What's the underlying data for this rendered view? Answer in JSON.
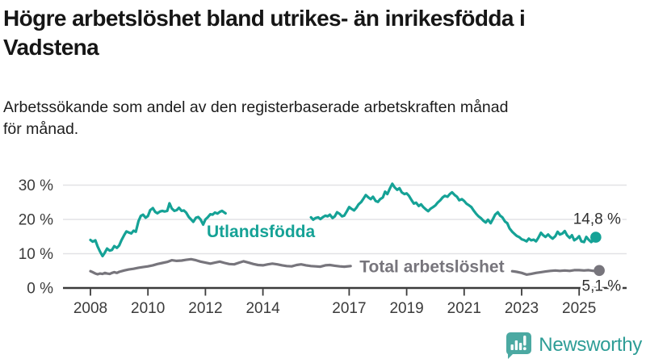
{
  "title": {
    "line1": "Högre arbetslöshet bland utrikes- än inrikesfödda i",
    "line2": "Vadstena"
  },
  "subtitle": {
    "line1": "Arbetssökande som andel av den registerbaserade arbetskraften månad",
    "line2": "för månad."
  },
  "branding": {
    "name": "Newsworthy",
    "icon": "bar-chart-speech-bubble",
    "icon_color": "#4BA9A2",
    "text_color": "#2E9D96"
  },
  "colors": {
    "series_utlandsfodda": "#15A296",
    "series_total": "#77757C",
    "grid": "#E2E2E6",
    "axis": "#3B3B3B",
    "tick_text": "#3B3B3B",
    "value_text": "#2F2F2F"
  },
  "chart_data": {
    "type": "line",
    "unit": "%",
    "x_ticks": [
      2008,
      2010,
      2012,
      2014,
      2017,
      2019,
      2021,
      2023,
      2025
    ],
    "y_ticks": [
      0,
      10,
      20,
      30
    ],
    "y_tick_labels": [
      "0 %",
      "10 %",
      "20 %",
      "30 %"
    ],
    "ylim": [
      0,
      34
    ],
    "xlim": [
      2007.3,
      2026.6
    ],
    "grid": "horizontal-only",
    "legend_position": "inline-labels",
    "series": [
      {
        "name": "Utlandsfödda",
        "color": "#15A296",
        "end_label": "14,8 %",
        "end_value": 14.8,
        "label": {
          "text": "Utlandsfödda",
          "x": 2013.93,
          "y": 16.6
        },
        "segments": [
          [
            [
              2008.0,
              14.0
            ],
            [
              2008.08,
              13.5
            ],
            [
              2008.17,
              13.9
            ],
            [
              2008.25,
              12.1
            ],
            [
              2008.33,
              10.7
            ],
            [
              2008.42,
              9.3
            ],
            [
              2008.5,
              10.3
            ],
            [
              2008.58,
              11.5
            ],
            [
              2008.67,
              10.9
            ],
            [
              2008.75,
              11.1
            ],
            [
              2008.83,
              12.2
            ],
            [
              2008.92,
              11.7
            ],
            [
              2009.0,
              12.4
            ],
            [
              2009.08,
              13.9
            ],
            [
              2009.17,
              15.4
            ],
            [
              2009.25,
              16.5
            ],
            [
              2009.33,
              16.2
            ],
            [
              2009.42,
              15.9
            ],
            [
              2009.5,
              16.7
            ],
            [
              2009.58,
              16.4
            ],
            [
              2009.67,
              19.5
            ],
            [
              2009.75,
              21.0
            ],
            [
              2009.83,
              21.4
            ],
            [
              2009.92,
              20.5
            ],
            [
              2010.0,
              21.0
            ],
            [
              2010.08,
              22.7
            ],
            [
              2010.17,
              23.3
            ],
            [
              2010.25,
              22.2
            ],
            [
              2010.33,
              21.8
            ],
            [
              2010.42,
              22.3
            ],
            [
              2010.5,
              22.5
            ],
            [
              2010.58,
              22.3
            ],
            [
              2010.67,
              22.5
            ],
            [
              2010.75,
              24.7
            ],
            [
              2010.83,
              23.2
            ],
            [
              2010.92,
              22.5
            ],
            [
              2011.0,
              22.7
            ],
            [
              2011.08,
              23.4
            ],
            [
              2011.17,
              22.5
            ],
            [
              2011.25,
              22.6
            ],
            [
              2011.33,
              22.0
            ],
            [
              2011.42,
              20.7
            ],
            [
              2011.5,
              20.0
            ],
            [
              2011.58,
              19.3
            ],
            [
              2011.67,
              20.5
            ],
            [
              2011.75,
              20.7
            ],
            [
              2011.83,
              20.0
            ],
            [
              2011.92,
              18.5
            ],
            [
              2012.0,
              20.0
            ],
            [
              2012.08,
              20.6
            ],
            [
              2012.17,
              21.5
            ],
            [
              2012.25,
              21.4
            ],
            [
              2012.33,
              22.0
            ],
            [
              2012.42,
              21.7
            ],
            [
              2012.5,
              22.2
            ],
            [
              2012.58,
              22.5
            ],
            [
              2012.7,
              21.8
            ]
          ],
          [
            [
              2015.67,
              20.6
            ],
            [
              2015.75,
              19.9
            ],
            [
              2015.83,
              20.4
            ],
            [
              2015.92,
              20.6
            ],
            [
              2016.0,
              20.1
            ],
            [
              2016.08,
              20.6
            ],
            [
              2016.17,
              21.1
            ],
            [
              2016.25,
              20.9
            ],
            [
              2016.33,
              21.4
            ],
            [
              2016.42,
              20.4
            ],
            [
              2016.5,
              20.9
            ],
            [
              2016.58,
              22.1
            ],
            [
              2016.67,
              21.6
            ],
            [
              2016.75,
              20.9
            ],
            [
              2016.83,
              21.1
            ],
            [
              2016.92,
              22.4
            ],
            [
              2017.0,
              23.6
            ],
            [
              2017.08,
              23.1
            ],
            [
              2017.17,
              22.6
            ],
            [
              2017.25,
              23.4
            ],
            [
              2017.33,
              24.4
            ],
            [
              2017.42,
              25.1
            ],
            [
              2017.5,
              26.1
            ],
            [
              2017.58,
              27.1
            ],
            [
              2017.67,
              26.4
            ],
            [
              2017.75,
              25.9
            ],
            [
              2017.83,
              26.6
            ],
            [
              2017.92,
              25.4
            ],
            [
              2018.0,
              25.1
            ],
            [
              2018.08,
              25.9
            ],
            [
              2018.17,
              26.4
            ],
            [
              2018.25,
              28.1
            ],
            [
              2018.33,
              27.4
            ],
            [
              2018.42,
              29.1
            ],
            [
              2018.5,
              30.4
            ],
            [
              2018.58,
              29.4
            ],
            [
              2018.67,
              28.6
            ],
            [
              2018.75,
              29.1
            ],
            [
              2018.83,
              27.9
            ],
            [
              2018.92,
              27.4
            ],
            [
              2019.0,
              27.6
            ],
            [
              2019.08,
              26.9
            ],
            [
              2019.17,
              25.6
            ],
            [
              2019.25,
              24.6
            ],
            [
              2019.33,
              24.9
            ],
            [
              2019.42,
              23.9
            ],
            [
              2019.5,
              24.4
            ],
            [
              2019.58,
              23.6
            ],
            [
              2019.67,
              22.9
            ],
            [
              2019.75,
              22.4
            ],
            [
              2019.83,
              23.1
            ],
            [
              2019.92,
              23.6
            ],
            [
              2020.0,
              24.1
            ],
            [
              2020.08,
              24.9
            ],
            [
              2020.17,
              25.6
            ],
            [
              2020.25,
              26.4
            ],
            [
              2020.33,
              26.9
            ],
            [
              2020.42,
              26.6
            ],
            [
              2020.5,
              27.4
            ],
            [
              2020.58,
              27.9
            ],
            [
              2020.67,
              27.1
            ],
            [
              2020.75,
              26.6
            ],
            [
              2020.83,
              25.6
            ],
            [
              2020.92,
              25.9
            ],
            [
              2021.0,
              25.4
            ],
            [
              2021.08,
              24.6
            ],
            [
              2021.17,
              24.1
            ],
            [
              2021.25,
              23.6
            ],
            [
              2021.33,
              22.6
            ],
            [
              2021.42,
              21.6
            ],
            [
              2021.5,
              20.9
            ],
            [
              2021.58,
              20.4
            ],
            [
              2021.67,
              19.6
            ],
            [
              2021.75,
              19.1
            ],
            [
              2021.83,
              19.9
            ],
            [
              2021.92,
              18.9
            ],
            [
              2022.0,
              20.1
            ],
            [
              2022.08,
              21.4
            ],
            [
              2022.17,
              22.1
            ],
            [
              2022.25,
              21.1
            ],
            [
              2022.33,
              20.6
            ],
            [
              2022.42,
              19.4
            ],
            [
              2022.5,
              18.9
            ],
            [
              2022.58,
              17.4
            ],
            [
              2022.67,
              16.4
            ],
            [
              2022.75,
              15.8
            ],
            [
              2022.83,
              15.2
            ],
            [
              2022.92,
              14.8
            ],
            [
              2023.0,
              14.2
            ],
            [
              2023.08,
              14.0
            ],
            [
              2023.17,
              13.6
            ],
            [
              2023.25,
              14.4
            ],
            [
              2023.33,
              13.9
            ],
            [
              2023.42,
              14.1
            ],
            [
              2023.5,
              13.6
            ],
            [
              2023.58,
              14.6
            ],
            [
              2023.67,
              16.1
            ],
            [
              2023.75,
              15.4
            ],
            [
              2023.83,
              14.9
            ],
            [
              2023.92,
              15.6
            ],
            [
              2024.0,
              14.9
            ],
            [
              2024.08,
              14.4
            ],
            [
              2024.17,
              15.1
            ],
            [
              2024.25,
              16.4
            ],
            [
              2024.33,
              15.6
            ],
            [
              2024.42,
              15.9
            ],
            [
              2024.5,
              16.6
            ],
            [
              2024.58,
              15.4
            ],
            [
              2024.67,
              14.6
            ],
            [
              2024.75,
              15.4
            ],
            [
              2024.83,
              13.9
            ],
            [
              2024.92,
              14.4
            ],
            [
              2025.0,
              15.1
            ],
            [
              2025.08,
              13.6
            ],
            [
              2025.17,
              13.4
            ],
            [
              2025.25,
              14.9
            ],
            [
              2025.33,
              14.1
            ],
            [
              2025.42,
              13.4
            ],
            [
              2025.5,
              13.9
            ],
            [
              2025.58,
              14.8
            ]
          ]
        ]
      },
      {
        "name": "Total arbetslöshet",
        "color": "#77757C",
        "end_label": "5,1 %",
        "end_value": 5.1,
        "label": {
          "text": "Total arbetslöshet",
          "x": 2019.88,
          "y": 6.3
        },
        "segments": [
          [
            [
              2008.0,
              4.9
            ],
            [
              2008.08,
              4.6
            ],
            [
              2008.17,
              4.2
            ],
            [
              2008.25,
              4.0
            ],
            [
              2008.33,
              4.2
            ],
            [
              2008.42,
              4.1
            ],
            [
              2008.5,
              4.4
            ],
            [
              2008.58,
              4.2
            ],
            [
              2008.67,
              4.1
            ],
            [
              2008.75,
              4.4
            ],
            [
              2008.83,
              4.6
            ],
            [
              2008.92,
              4.4
            ],
            [
              2009.0,
              4.7
            ],
            [
              2009.17,
              5.1
            ],
            [
              2009.33,
              5.4
            ],
            [
              2009.5,
              5.6
            ],
            [
              2009.67,
              5.9
            ],
            [
              2009.83,
              6.1
            ],
            [
              2010.0,
              6.3
            ],
            [
              2010.17,
              6.6
            ],
            [
              2010.33,
              7.0
            ],
            [
              2010.5,
              7.3
            ],
            [
              2010.67,
              7.6
            ],
            [
              2010.83,
              8.1
            ],
            [
              2011.0,
              7.9
            ],
            [
              2011.17,
              8.0
            ],
            [
              2011.33,
              8.2
            ],
            [
              2011.5,
              8.4
            ],
            [
              2011.67,
              8.1
            ],
            [
              2011.83,
              7.7
            ],
            [
              2012.0,
              7.4
            ],
            [
              2012.17,
              7.1
            ],
            [
              2012.33,
              7.4
            ],
            [
              2012.5,
              7.7
            ],
            [
              2012.67,
              7.3
            ],
            [
              2012.83,
              7.0
            ],
            [
              2013.0,
              6.9
            ],
            [
              2013.17,
              7.4
            ],
            [
              2013.33,
              7.8
            ],
            [
              2013.5,
              7.4
            ],
            [
              2013.67,
              7.0
            ],
            [
              2013.83,
              6.7
            ],
            [
              2014.0,
              6.6
            ],
            [
              2014.17,
              6.9
            ],
            [
              2014.33,
              7.1
            ],
            [
              2014.5,
              6.9
            ],
            [
              2014.67,
              6.6
            ],
            [
              2014.83,
              6.4
            ],
            [
              2015.0,
              6.3
            ],
            [
              2015.17,
              6.7
            ],
            [
              2015.33,
              6.9
            ],
            [
              2015.5,
              6.6
            ],
            [
              2015.67,
              6.4
            ],
            [
              2015.83,
              6.3
            ],
            [
              2016.0,
              6.2
            ],
            [
              2016.17,
              6.6
            ],
            [
              2016.33,
              6.7
            ],
            [
              2016.5,
              6.5
            ],
            [
              2016.67,
              6.3
            ],
            [
              2016.83,
              6.2
            ],
            [
              2017.05,
              6.4
            ]
          ],
          [
            [
              2022.67,
              4.9
            ],
            [
              2022.83,
              4.7
            ],
            [
              2023.0,
              4.4
            ],
            [
              2023.17,
              3.9
            ],
            [
              2023.33,
              4.1
            ],
            [
              2023.5,
              4.4
            ],
            [
              2023.67,
              4.6
            ],
            [
              2023.83,
              4.8
            ],
            [
              2024.0,
              5.0
            ],
            [
              2024.17,
              5.1
            ],
            [
              2024.33,
              5.0
            ],
            [
              2024.5,
              5.1
            ],
            [
              2024.67,
              5.0
            ],
            [
              2024.83,
              5.2
            ],
            [
              2025.0,
              5.2
            ],
            [
              2025.17,
              5.1
            ],
            [
              2025.33,
              5.2
            ],
            [
              2025.5,
              5.0
            ],
            [
              2025.7,
              5.1
            ]
          ]
        ]
      }
    ]
  }
}
